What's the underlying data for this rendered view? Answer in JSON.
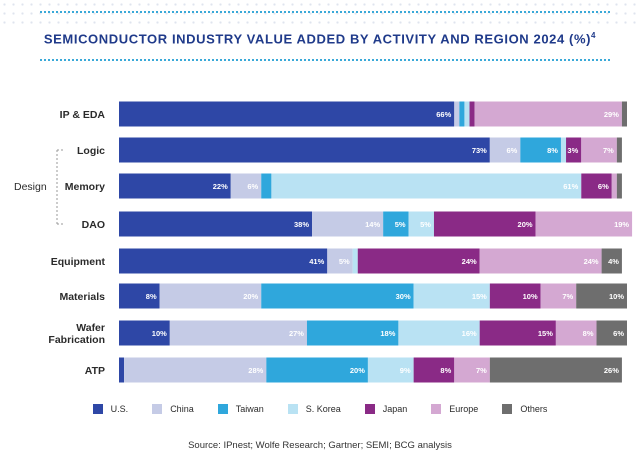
{
  "title": "SEMICONDUCTOR INDUSTRY VALUE ADDED BY ACTIVITY AND REGION 2024 (%)",
  "title_footnote": "4",
  "source": "Source: IPnest; Wolfe Research; Gartner; SEMI; BCG analysis",
  "group_label": "Design",
  "chart_data": {
    "type": "bar",
    "orientation": "horizontal",
    "stacked": true,
    "percent": true,
    "title": "SEMICONDUCTOR INDUSTRY VALUE ADDED BY ACTIVITY AND REGION 2024 (%)",
    "categories": [
      "IP & EDA",
      "Logic",
      "Memory",
      "DAO",
      "Equipment",
      "Materials",
      "Wafer Fabrication",
      "ATP"
    ],
    "category_display": [
      [
        "IP & EDA"
      ],
      [
        "Logic"
      ],
      [
        "Memory"
      ],
      [
        "DAO"
      ],
      [
        "Equipment"
      ],
      [
        "Materials"
      ],
      [
        "Wafer",
        "Fabrication"
      ],
      [
        "ATP"
      ]
    ],
    "design_group": [
      "Logic",
      "Memory",
      "DAO"
    ],
    "xlim": [
      0,
      100
    ],
    "legend_position": "bottom",
    "series": [
      {
        "name": "U.S.",
        "color": "#2e47a6",
        "values": [
          66,
          73,
          22,
          38,
          41,
          8,
          10,
          1
        ]
      },
      {
        "name": "China",
        "color": "#c5cbe6",
        "values": [
          1,
          6,
          6,
          14,
          5,
          20,
          27,
          28
        ]
      },
      {
        "name": "Taiwan",
        "color": "#2fa7dc",
        "values": [
          1,
          8,
          2,
          5,
          0,
          30,
          18,
          20
        ]
      },
      {
        "name": "S. Korea",
        "color": "#b9e2f3",
        "values": [
          1,
          1,
          61,
          5,
          1,
          15,
          16,
          9
        ]
      },
      {
        "name": "Japan",
        "color": "#8a2a86",
        "values": [
          1,
          3,
          6,
          20,
          24,
          10,
          15,
          8
        ]
      },
      {
        "name": "Europe",
        "color": "#d4a8d2",
        "values": [
          29,
          7,
          1,
          19,
          24,
          7,
          8,
          7
        ]
      },
      {
        "name": "Others",
        "color": "#6e6e6e",
        "values": [
          1,
          1,
          1,
          0,
          4,
          10,
          6,
          26
        ]
      }
    ],
    "data_labels": [
      [
        "66%",
        "",
        "",
        "",
        "",
        "29%",
        ""
      ],
      [
        "73%",
        "6%",
        "8%",
        "",
        "3%",
        "7%",
        ""
      ],
      [
        "22%",
        "6%",
        "",
        "61%",
        "6%",
        "",
        ""
      ],
      [
        "38%",
        "14%",
        "5%",
        "5%",
        "20%",
        "19%",
        ""
      ],
      [
        "41%",
        "5%",
        "",
        "",
        "24%",
        "24%",
        "4%"
      ],
      [
        "8%",
        "20%",
        "30%",
        "15%",
        "10%",
        "7%",
        "10%"
      ],
      [
        "10%",
        "27%",
        "18%",
        "16%",
        "15%",
        "8%",
        "6%"
      ],
      [
        "",
        "28%",
        "20%",
        "9%",
        "8%",
        "7%",
        "26%"
      ]
    ],
    "label_colors": {
      "U.S.": "#ffffff",
      "China": "#ffffff",
      "Taiwan": "#ffffff",
      "S. Korea": "#ffffff",
      "Japan": "#ffffff",
      "Europe": "#ffffff",
      "Others": "#ffffff"
    }
  }
}
